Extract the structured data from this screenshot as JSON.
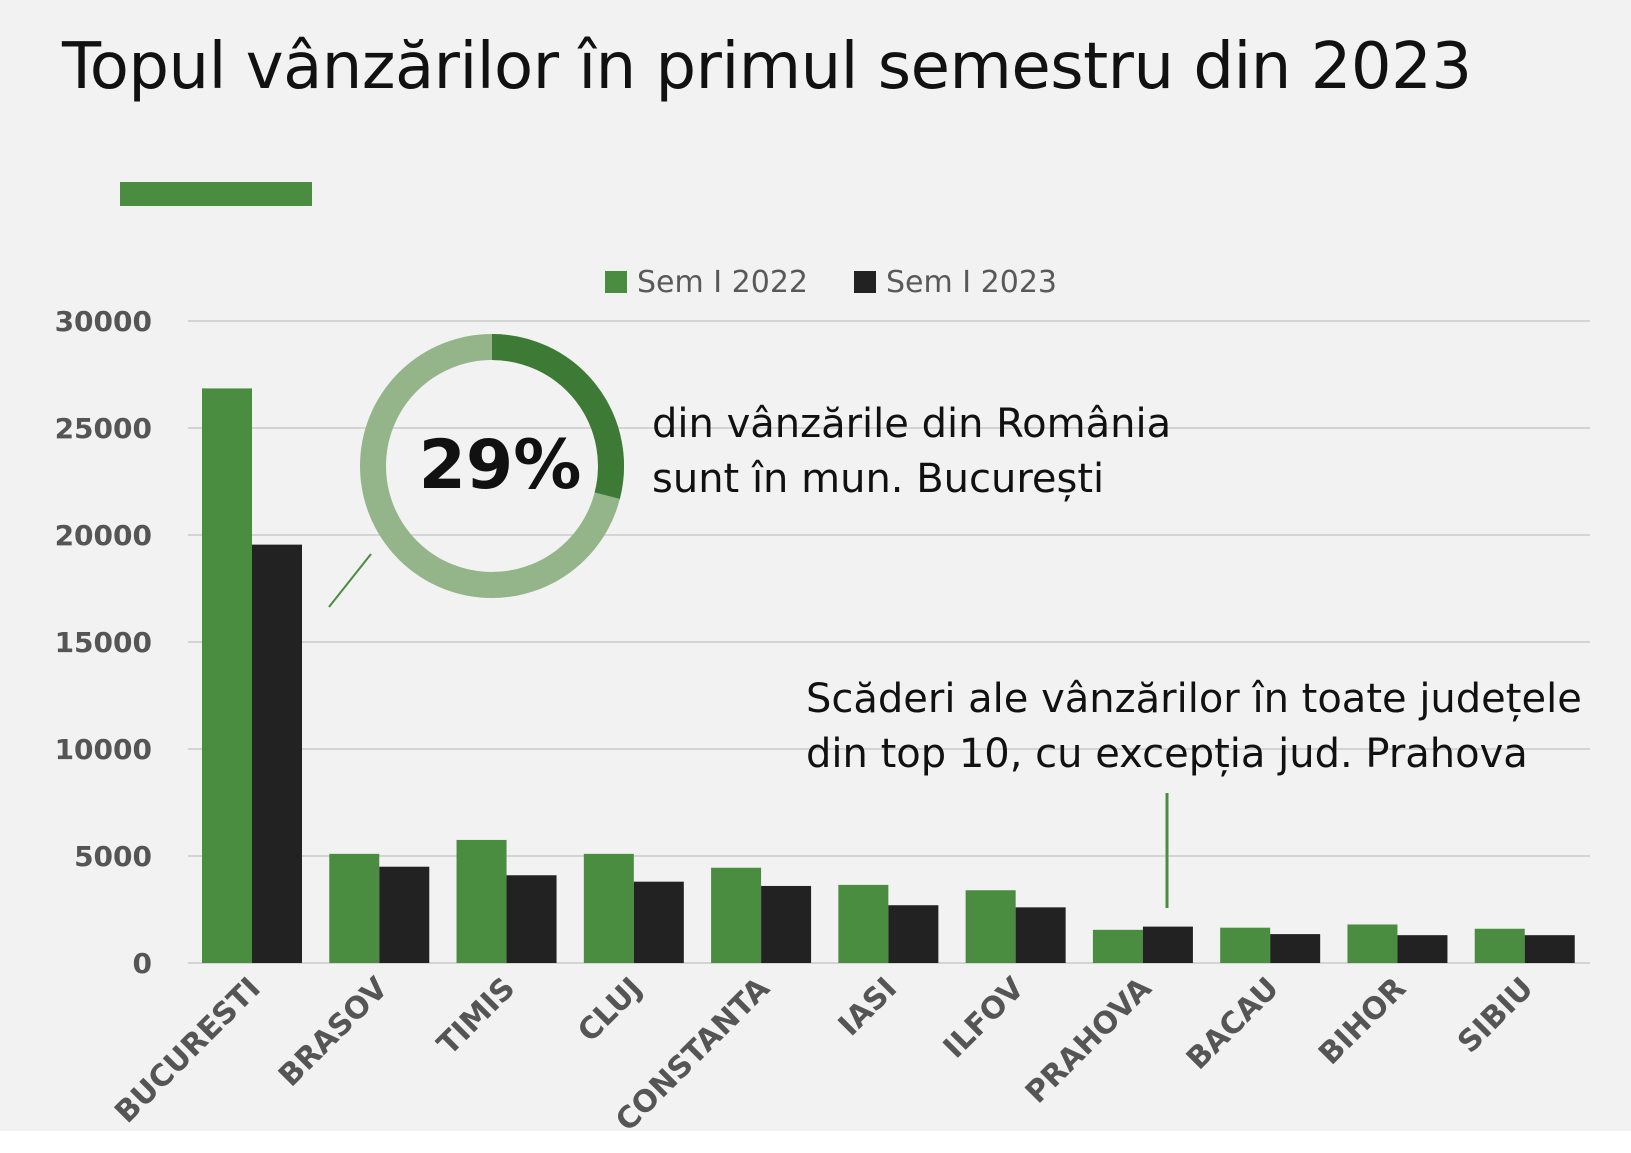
{
  "title": "Topul vânzărilor în primul semestru din 2023",
  "colors": {
    "sem2022": "#4a8c40",
    "sem2023": "#222222",
    "grid": "#d4d4d4",
    "donut_light": "#94b48a",
    "donut_dark": "#3d7a35",
    "accent": "#4a8c40"
  },
  "chart_data": {
    "type": "bar",
    "categories": [
      "BUCURESTI",
      "BRASOV",
      "TIMIS",
      "CLUJ",
      "CONSTANTA",
      "IASI",
      "ILFOV",
      "PRAHOVA",
      "BACAU",
      "BIHOR",
      "SIBIU"
    ],
    "series": [
      {
        "name": "Sem I 2022",
        "values": [
          26850,
          5100,
          5750,
          5100,
          4450,
          3650,
          3400,
          1550,
          1650,
          1800,
          1600
        ]
      },
      {
        "name": "Sem I 2023",
        "values": [
          19550,
          4500,
          4100,
          3800,
          3600,
          2700,
          2600,
          1700,
          1350,
          1300,
          1300
        ]
      }
    ],
    "ylim": [
      0,
      30000
    ],
    "yticks": [
      "0",
      "5000",
      "10000",
      "15000",
      "20000",
      "25000",
      "30000"
    ],
    "grid": true,
    "legend_position": "top-center",
    "annotations": {
      "donut": {
        "value": 29,
        "label": "29%",
        "text_lines": [
          "din vânzările din România",
          "sunt în mun. București"
        ]
      },
      "note": {
        "text_lines": [
          "Scăderi ale vânzărilor în toate județele",
          "din top 10, cu excepția jud. Prahova"
        ]
      }
    }
  }
}
